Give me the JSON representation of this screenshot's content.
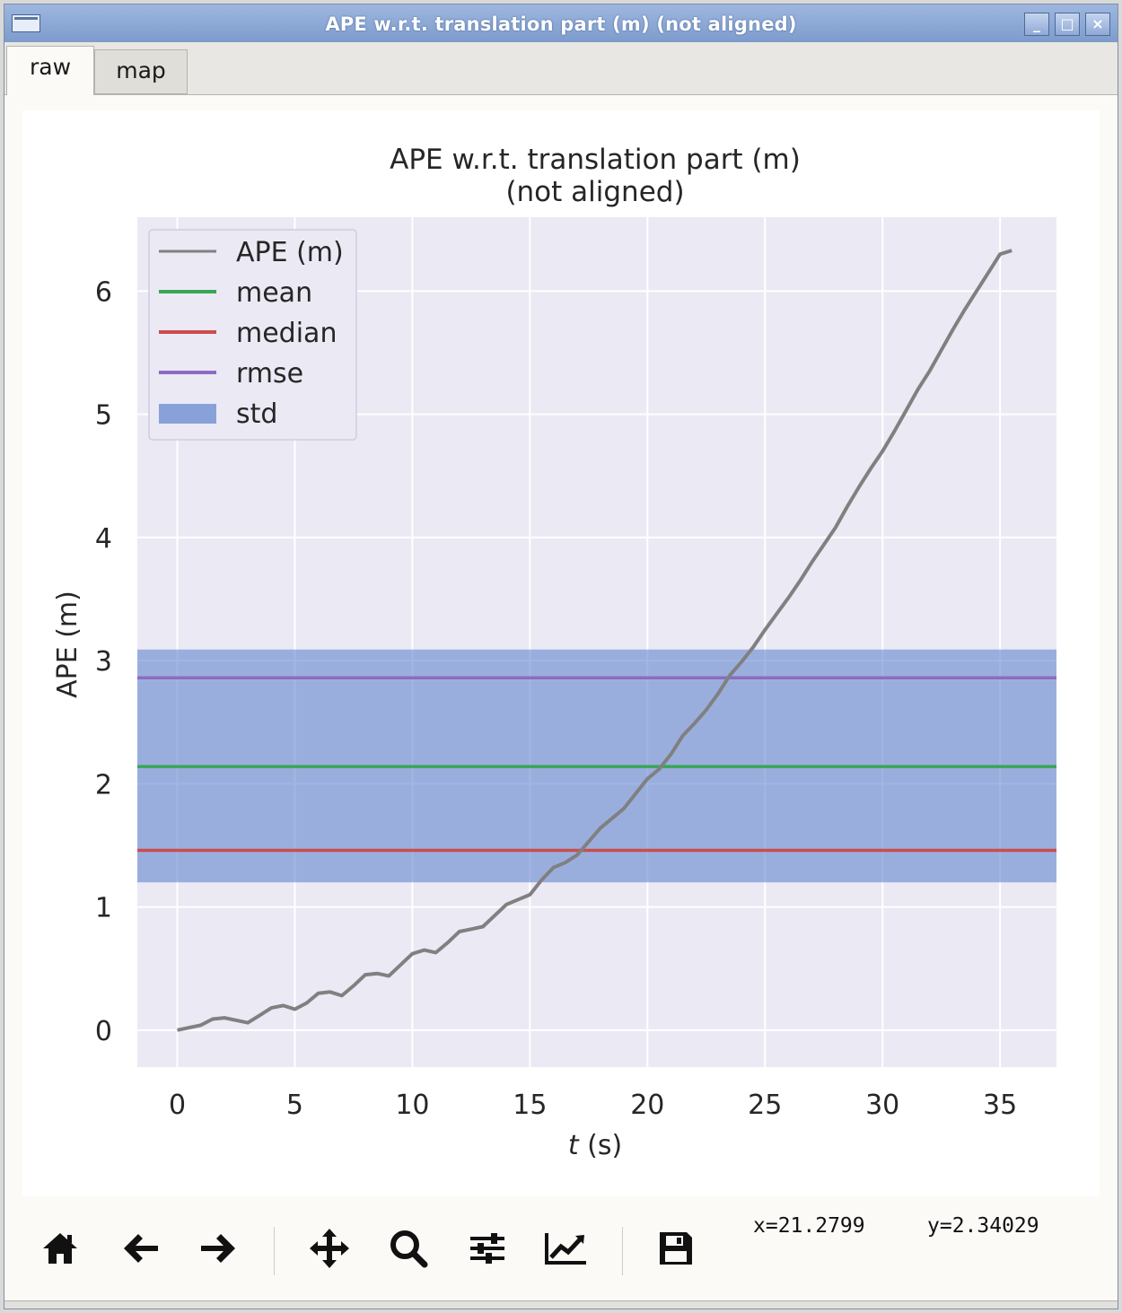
{
  "window": {
    "title": "APE w.r.t. translation part (m) (not aligned)",
    "minimize_label": "_",
    "maximize_label": "□",
    "close_label": "×"
  },
  "tabs": [
    {
      "label": "raw",
      "active": true
    },
    {
      "label": "map",
      "active": false
    }
  ],
  "toolbar": {
    "buttons": [
      {
        "name": "home-button",
        "icon": "home-icon"
      },
      {
        "name": "back-button",
        "icon": "arrow-left-icon"
      },
      {
        "name": "forward-button",
        "icon": "arrow-right-icon"
      },
      {
        "name": "pan-button",
        "icon": "move-icon"
      },
      {
        "name": "zoom-button",
        "icon": "search-icon"
      },
      {
        "name": "configure-subplots-button",
        "icon": "sliders-icon"
      },
      {
        "name": "edit-axis-button",
        "icon": "chart-line-icon"
      },
      {
        "name": "save-button",
        "icon": "save-icon"
      }
    ],
    "x_readout": "x=21.2799",
    "y_readout": "y=2.34029"
  },
  "chart_data": {
    "type": "line",
    "title": "APE w.r.t. translation part (m)",
    "subtitle": "(not aligned)",
    "xlabel_italic": "t",
    "xlabel_rest": " (s)",
    "ylabel": "APE (m)",
    "xlim": [
      -1.7,
      37.4
    ],
    "ylim": [
      -0.3,
      6.6
    ],
    "xticks": [
      0,
      5,
      10,
      15,
      20,
      25,
      30,
      35
    ],
    "yticks": [
      0,
      1,
      2,
      3,
      4,
      5,
      6
    ],
    "grid": true,
    "legend_position": "top-left",
    "legend": [
      "APE (m)",
      "mean",
      "median",
      "rmse",
      "std"
    ],
    "colors": {
      "ape": "#808080",
      "mean": "#3aa655",
      "median": "#cc4c4c",
      "rmse": "#8c6bc4",
      "std": "#6f8fd2",
      "plot_bg": "#ebe9f4"
    },
    "stats": {
      "mean": 2.14,
      "median": 1.46,
      "rmse": 2.86,
      "std_low": 1.2,
      "std_high": 3.09
    },
    "series": [
      {
        "name": "APE (m)",
        "x": [
          0,
          0.5,
          1,
          1.5,
          2,
          2.5,
          3,
          3.5,
          4,
          4.5,
          5,
          5.5,
          6,
          6.5,
          7,
          7.5,
          8,
          8.5,
          9,
          9.5,
          10,
          10.5,
          11,
          11.5,
          12,
          12.5,
          13,
          13.5,
          14,
          14.5,
          15,
          15.5,
          16,
          16.5,
          17,
          17.5,
          18,
          18.5,
          19,
          19.5,
          20,
          20.5,
          21,
          21.5,
          22,
          22.5,
          23,
          23.5,
          24,
          24.5,
          25,
          25.5,
          26,
          26.5,
          27,
          27.5,
          28,
          28.5,
          29,
          29.5,
          30,
          30.5,
          31,
          31.5,
          32,
          32.5,
          33,
          33.5,
          34,
          34.5,
          35,
          35.5
        ],
        "y": [
          0.0,
          0.02,
          0.04,
          0.09,
          0.1,
          0.08,
          0.06,
          0.12,
          0.18,
          0.2,
          0.17,
          0.22,
          0.3,
          0.31,
          0.28,
          0.36,
          0.45,
          0.46,
          0.44,
          0.53,
          0.62,
          0.65,
          0.63,
          0.71,
          0.8,
          0.82,
          0.84,
          0.93,
          1.02,
          1.06,
          1.1,
          1.22,
          1.32,
          1.36,
          1.42,
          1.53,
          1.64,
          1.72,
          1.8,
          1.92,
          2.04,
          2.12,
          2.24,
          2.39,
          2.49,
          2.6,
          2.73,
          2.88,
          2.99,
          3.11,
          3.25,
          3.38,
          3.51,
          3.65,
          3.8,
          3.94,
          4.08,
          4.25,
          4.41,
          4.56,
          4.7,
          4.86,
          5.03,
          5.2,
          5.35,
          5.52,
          5.69,
          5.85,
          6.0,
          6.15,
          6.3,
          6.33
        ]
      }
    ]
  }
}
